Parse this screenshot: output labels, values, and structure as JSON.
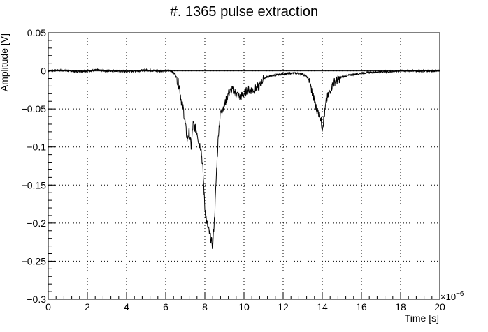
{
  "chart_data": {
    "type": "line",
    "title": "#. 1365 pulse extraction",
    "xlabel": "Time [s]",
    "ylabel": "Amplitude [V]",
    "x_multiplier_label": "×10",
    "x_multiplier_exponent": "−6",
    "xlim": [
      0,
      20
    ],
    "ylim": [
      -0.3,
      0.05
    ],
    "x_ticks": [
      0,
      2,
      4,
      6,
      8,
      10,
      12,
      14,
      16,
      18,
      20
    ],
    "x_tick_labels": [
      "0",
      "2",
      "4",
      "6",
      "8",
      "10",
      "12",
      "14",
      "16",
      "18",
      "20"
    ],
    "y_ticks": [
      -0.3,
      -0.25,
      -0.2,
      -0.15,
      -0.1,
      -0.05,
      0,
      0.05
    ],
    "y_tick_labels": [
      "−0.3",
      "−0.25",
      "−0.2",
      "−0.15",
      "−0.1",
      "−0.05",
      "0",
      "0.05"
    ],
    "grid": true,
    "baseline": 0,
    "series": [
      {
        "x": [
          0,
          0.5,
          1.0,
          1.5,
          2.0,
          2.5,
          3.0,
          3.5,
          4.0,
          4.5,
          5.0,
          5.5,
          6.0,
          6.3,
          6.5,
          6.7,
          6.8,
          6.9,
          7.0,
          7.1,
          7.2,
          7.3,
          7.4,
          7.5,
          7.6,
          7.7,
          7.8,
          7.9,
          8.0,
          8.1,
          8.2,
          8.3,
          8.4,
          8.5,
          8.6,
          8.7,
          8.8,
          9.0,
          9.2,
          9.4,
          9.6,
          9.8,
          10.0,
          10.2,
          10.5,
          10.8,
          11.0,
          11.2,
          11.5,
          12.0,
          12.5,
          13.0,
          13.3,
          13.5,
          13.6,
          13.7,
          13.8,
          13.9,
          14.0,
          14.1,
          14.2,
          14.4,
          14.6,
          15.0,
          15.5,
          16.0,
          16.5,
          17.0,
          17.5,
          18.0,
          18.5,
          19.0,
          19.5,
          20.0
        ],
        "y": [
          0.0,
          0.001,
          0.0,
          -0.001,
          0.0,
          0.001,
          0.0,
          0.0,
          -0.001,
          0.0,
          0.001,
          0.0,
          0.0,
          0.0,
          -0.005,
          -0.02,
          -0.04,
          -0.05,
          -0.07,
          -0.09,
          -0.08,
          -0.1,
          -0.07,
          -0.075,
          -0.08,
          -0.095,
          -0.1,
          -0.13,
          -0.18,
          -0.2,
          -0.21,
          -0.22,
          -0.23,
          -0.19,
          -0.13,
          -0.08,
          -0.055,
          -0.045,
          -0.03,
          -0.025,
          -0.03,
          -0.035,
          -0.03,
          -0.025,
          -0.025,
          -0.02,
          -0.01,
          -0.008,
          -0.006,
          -0.004,
          -0.003,
          -0.004,
          -0.01,
          -0.03,
          -0.04,
          -0.05,
          -0.055,
          -0.06,
          -0.075,
          -0.06,
          -0.04,
          -0.025,
          -0.015,
          -0.008,
          -0.005,
          -0.003,
          -0.002,
          -0.001,
          -0.001,
          0.0,
          0.0,
          0.0,
          0.0,
          0.0
        ]
      }
    ]
  }
}
